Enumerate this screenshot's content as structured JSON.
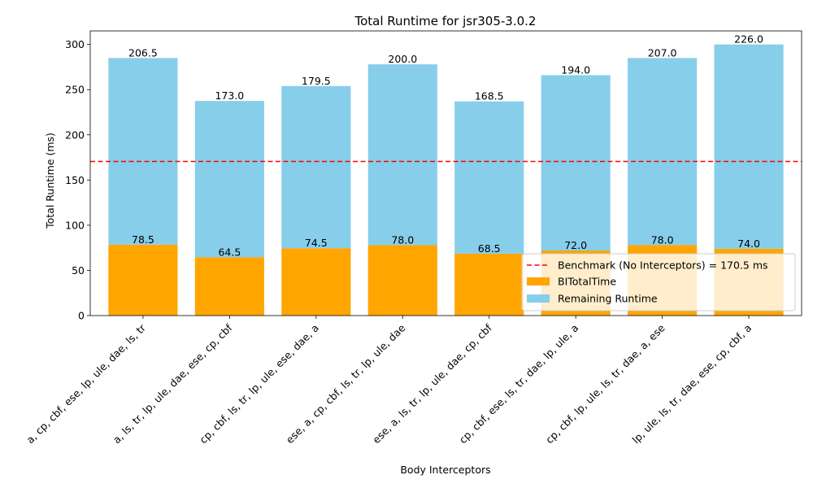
{
  "chart_data": {
    "type": "bar",
    "stacked": true,
    "title": "Total Runtime for jsr305-3.0.2",
    "xlabel": "Body Interceptors",
    "ylabel": "Total Runtime (ms)",
    "ylim": [
      0,
      315
    ],
    "yticks": [
      0,
      50,
      100,
      150,
      200,
      250,
      300
    ],
    "categories": [
      "a, cp, cbf, ese, lp, ule, dae, ls, tr",
      "a, ls, tr, lp, ule, dae, ese, cp, cbf",
      "cp, cbf, ls, tr, lp, ule, ese, dae, a",
      "ese, a, cp, cbf, ls, tr, lp, ule, dae",
      "ese, a, ls, tr, lp, ule, dae, cp, cbf",
      "cp, cbf, ese, ls, tr, dae, lp, ule, a",
      "cp, cbf, lp, ule, ls, tr, dae, a, ese",
      "lp, ule, ls, tr, dae, ese, cp, cbf, a"
    ],
    "series": [
      {
        "name": "BITotalTime",
        "color": "#ffa500",
        "values": [
          78.5,
          64.5,
          74.5,
          78.0,
          68.5,
          72.0,
          78.0,
          74.0
        ],
        "labels": [
          "78.5",
          "64.5",
          "74.5",
          "78.0",
          "68.5",
          "72.0",
          "78.0",
          "74.0"
        ]
      },
      {
        "name": "Remaining Runtime",
        "color": "#87ceeb",
        "values": [
          206.5,
          173.0,
          179.5,
          200.0,
          168.5,
          194.0,
          207.0,
          226.0
        ],
        "labels": [
          "206.5",
          "173.0",
          "179.5",
          "200.0",
          "168.5",
          "194.0",
          "207.0",
          "226.0"
        ]
      }
    ],
    "benchmark": {
      "value": 170.5,
      "label": "Benchmark (No Interceptors) = 170.5 ms",
      "color": "#ff0000"
    },
    "grid": false,
    "legend_position": "lower-right"
  }
}
